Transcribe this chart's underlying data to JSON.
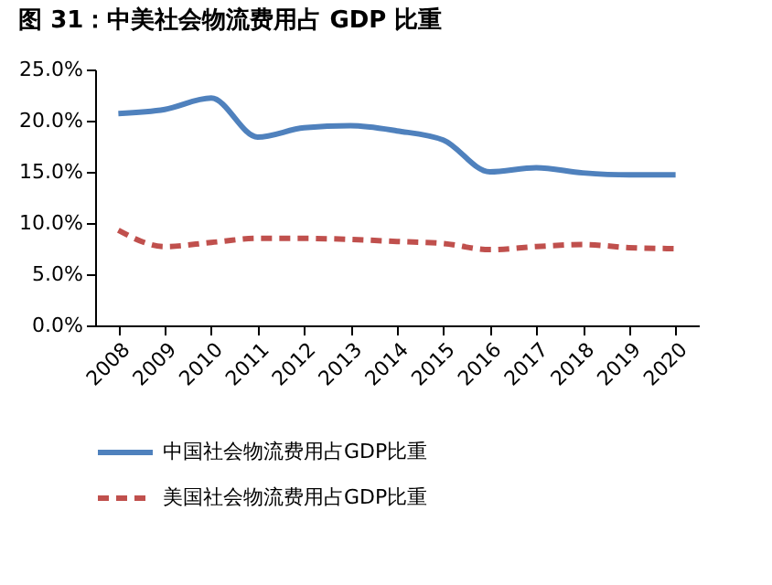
{
  "chart_data": {
    "type": "line",
    "title": "图 31：中美社会物流费用占 GDP 比重",
    "categories": [
      "2008",
      "2009",
      "2010",
      "2011",
      "2012",
      "2013",
      "2014",
      "2015",
      "2016",
      "2017",
      "2018",
      "2019",
      "2020"
    ],
    "series": [
      {
        "name": "中国社会物流费用占GDP比重",
        "color": "#4f81bd",
        "line_style": "solid",
        "values": [
          20.7,
          21.1,
          22.2,
          18.4,
          19.3,
          19.5,
          19.0,
          18.1,
          15.0,
          15.4,
          14.9,
          14.7,
          14.7
        ]
      },
      {
        "name": "美国社会物流费用占GDP比重",
        "color": "#c0504d",
        "line_style": "dashed",
        "values": [
          9.3,
          7.7,
          8.1,
          8.5,
          8.5,
          8.4,
          8.2,
          8.0,
          7.4,
          7.7,
          7.9,
          7.6,
          7.5
        ]
      }
    ],
    "ylim": [
      0,
      25
    ],
    "yticks": [
      {
        "value": 0,
        "label": "0.0%"
      },
      {
        "value": 5,
        "label": "5.0%"
      },
      {
        "value": 10,
        "label": "10.0%"
      },
      {
        "value": 15,
        "label": "15.0%"
      },
      {
        "value": 20,
        "label": "20.0%"
      },
      {
        "value": 25,
        "label": "25.0%"
      }
    ],
    "grid": false,
    "legend": "bottom",
    "marker": "none"
  }
}
